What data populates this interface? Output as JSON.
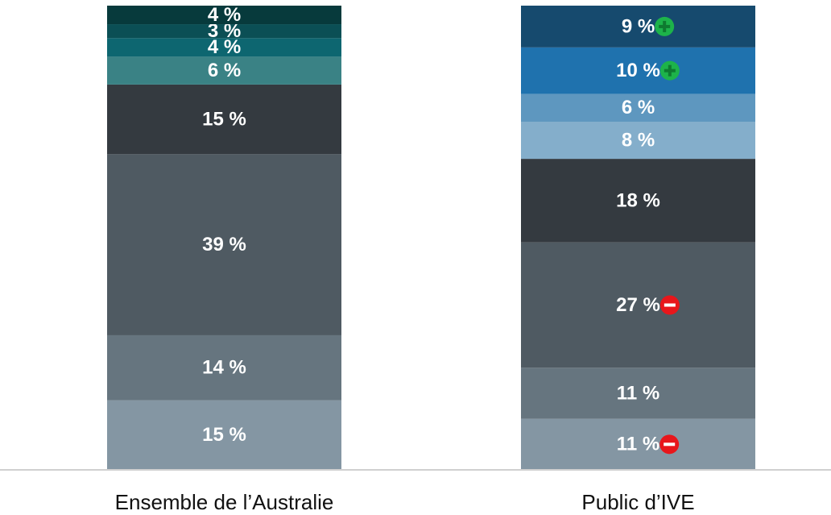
{
  "chart_data": {
    "type": "bar",
    "stacked": true,
    "categories": [
      "Ensemble de l’Australie",
      "Public d’IVE"
    ],
    "ylim": [
      0,
      100
    ],
    "series": [
      {
        "colors": [
          "#8496a3",
          "#8496a3"
        ],
        "values": [
          15,
          11
        ],
        "value_labels": [
          "15 %",
          "11 %"
        ],
        "markers": [
          null,
          "minus"
        ]
      },
      {
        "colors": [
          "#66757f",
          "#66757f"
        ],
        "values": [
          14,
          11
        ],
        "value_labels": [
          "14 %",
          "11 %"
        ],
        "markers": [
          null,
          null
        ]
      },
      {
        "colors": [
          "#4f5a62",
          "#4f5a62"
        ],
        "values": [
          39,
          27
        ],
        "value_labels": [
          "39 %",
          "27 %"
        ],
        "markers": [
          null,
          "minus"
        ]
      },
      {
        "colors": [
          "#343a40",
          "#343a40"
        ],
        "values": [
          15,
          18
        ],
        "value_labels": [
          "15 %",
          "18 %"
        ],
        "markers": [
          null,
          null
        ]
      },
      {
        "colors": [
          "#3a8285",
          "#84aecb"
        ],
        "values": [
          6,
          8
        ],
        "value_labels": [
          "6 %",
          "8 %"
        ],
        "markers": [
          null,
          null
        ]
      },
      {
        "colors": [
          "#0d6670",
          "#5e97bf"
        ],
        "values": [
          4,
          6
        ],
        "value_labels": [
          "4 %",
          "6 %"
        ],
        "markers": [
          null,
          null
        ]
      },
      {
        "colors": [
          "#0b4f55",
          "#1f72ae"
        ],
        "values": [
          3,
          10
        ],
        "value_labels": [
          "3 %",
          "10 %"
        ],
        "markers": [
          null,
          "plus"
        ]
      },
      {
        "colors": [
          "#073a3c",
          "#164a6e"
        ],
        "values": [
          4,
          9
        ],
        "value_labels": [
          "4 %",
          "9 %"
        ],
        "markers": [
          null,
          "plus"
        ]
      }
    ]
  }
}
